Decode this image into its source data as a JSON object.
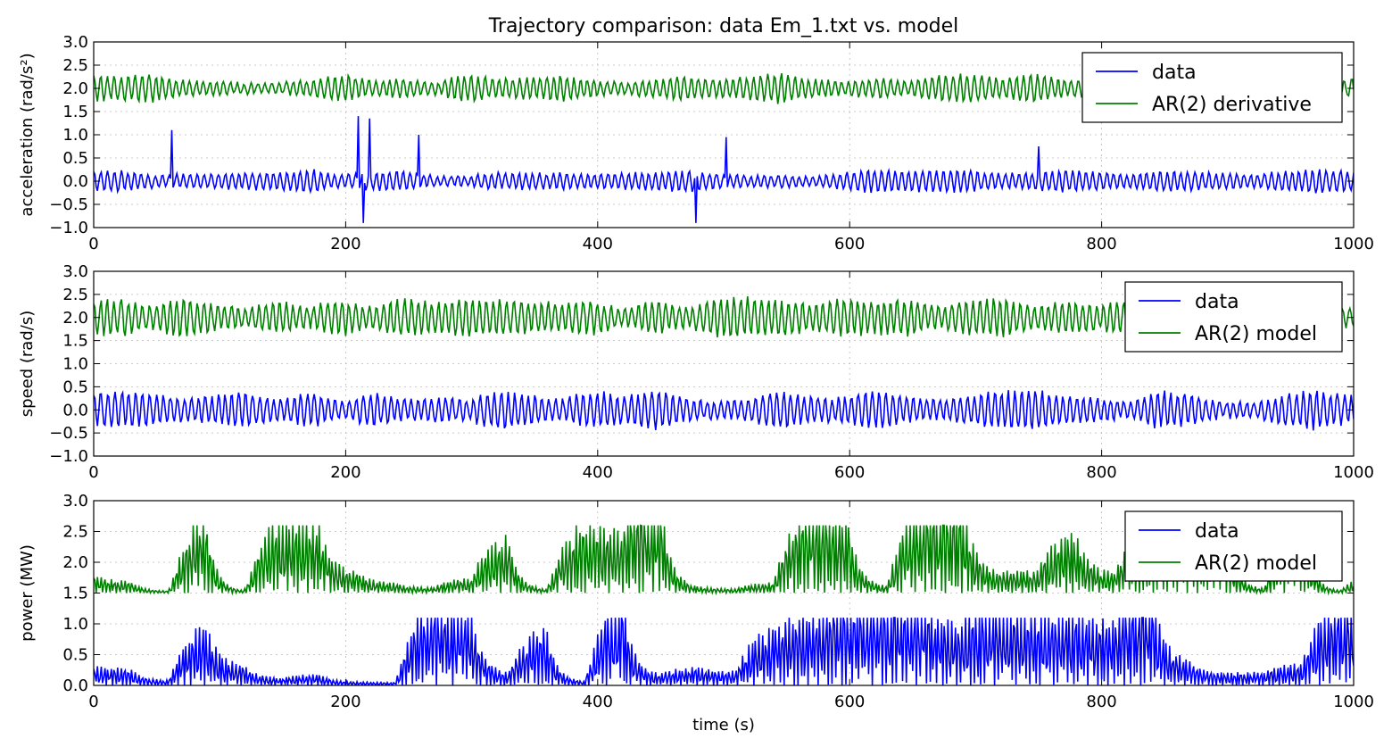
{
  "figure": {
    "title": "Trajectory comparison: data Em_1.txt vs. model",
    "xlabel_bottom": "time (s)"
  },
  "colors": {
    "data": "#0000ff",
    "model": "#008000",
    "grid": "#bbbbbb"
  },
  "chart_data": [
    {
      "type": "line",
      "ylabel": "acceleration (rad/s²)",
      "xlim": [
        0,
        1000
      ],
      "ylim": [
        -1.0,
        3.0
      ],
      "xticks": [
        "0",
        "200",
        "400",
        "600",
        "800",
        "1000"
      ],
      "yticks": [
        "−1.0",
        "−0.5",
        "0.0",
        "0.5",
        "1.0",
        "1.5",
        "2.0",
        "2.5",
        "3.0"
      ],
      "grid": true,
      "legend_position": "top-right",
      "series": [
        {
          "name": "data",
          "color": "#0000ff",
          "kind": "oscillation",
          "offset": 0.0,
          "amplitude": 0.2,
          "envelope_min": -0.95,
          "envelope_max": 1.45,
          "spikes": [
            [
              62,
              1.1
            ],
            [
              210,
              1.4
            ],
            [
              214,
              -0.9
            ],
            [
              219,
              1.35
            ],
            [
              258,
              1.0
            ],
            [
              478,
              -0.9
            ],
            [
              502,
              0.95
            ],
            [
              750,
              0.75
            ]
          ]
        },
        {
          "name": "AR(2) derivative",
          "color": "#008000",
          "kind": "oscillation",
          "offset": 2.0,
          "amplitude": 0.25,
          "envelope_min": 1.35,
          "envelope_max": 2.65
        }
      ]
    },
    {
      "type": "line",
      "ylabel": "speed (rad/s)",
      "xlim": [
        0,
        1000
      ],
      "ylim": [
        -1.0,
        3.0
      ],
      "xticks": [
        "0",
        "200",
        "400",
        "600",
        "800",
        "1000"
      ],
      "yticks": [
        "−1.0",
        "−0.5",
        "0.0",
        "0.5",
        "1.0",
        "1.5",
        "2.0",
        "2.5",
        "3.0"
      ],
      "grid": true,
      "legend_position": "top-right",
      "series": [
        {
          "name": "data",
          "color": "#0000ff",
          "kind": "oscillation",
          "offset": 0.0,
          "amplitude": 0.35,
          "envelope_min": -0.95,
          "envelope_max": 0.8
        },
        {
          "name": "AR(2) model",
          "color": "#008000",
          "kind": "oscillation",
          "offset": 2.0,
          "amplitude": 0.35,
          "envelope_min": 1.5,
          "envelope_max": 2.65
        }
      ]
    },
    {
      "type": "line",
      "ylabel": "power (MW)",
      "xlim": [
        0,
        1000
      ],
      "ylim": [
        0.0,
        3.0
      ],
      "xticks": [
        "0",
        "200",
        "400",
        "600",
        "800",
        "1000"
      ],
      "yticks": [
        "0.0",
        "0.5",
        "1.0",
        "1.5",
        "2.0",
        "2.5",
        "3.0"
      ],
      "grid": true,
      "legend_position": "top-right",
      "series": [
        {
          "name": "data",
          "color": "#0000ff",
          "kind": "power",
          "offset": 0.0,
          "amplitude": 1.1,
          "envelope_min": 0.0,
          "envelope_max": 1.1
        },
        {
          "name": "AR(2) model",
          "color": "#008000",
          "kind": "power",
          "offset": 1.5,
          "amplitude": 1.1,
          "envelope_min": 1.5,
          "envelope_max": 2.6
        }
      ]
    }
  ]
}
